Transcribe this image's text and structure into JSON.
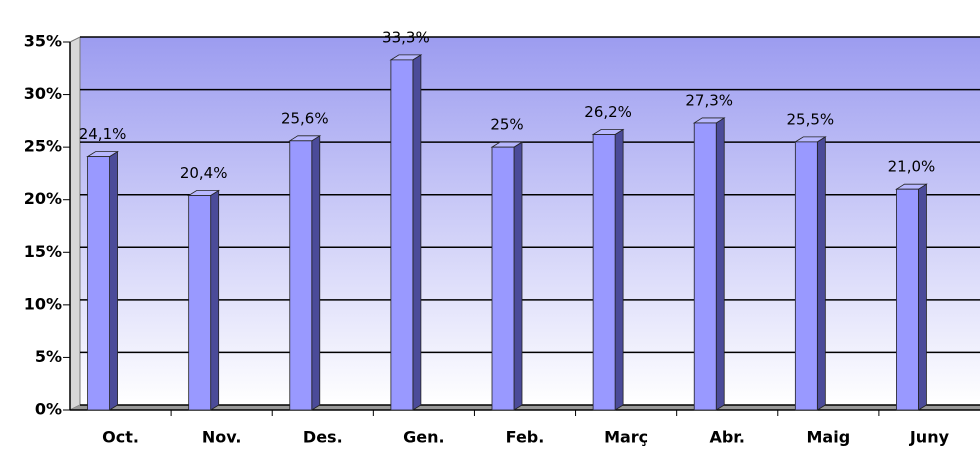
{
  "chart_data": {
    "type": "bar",
    "categories": [
      "Oct.",
      "Nov.",
      "Des.",
      "Gen.",
      "Feb.",
      "Març",
      "Abr.",
      "Maig",
      "Juny"
    ],
    "values": [
      24.1,
      20.4,
      25.6,
      33.3,
      25,
      26.2,
      27.3,
      25.5,
      21.0
    ],
    "value_labels": [
      "24,1%",
      "20,4%",
      "25,6%",
      "33,3%",
      "25%",
      "26,2%",
      "27,3%",
      "25,5%",
      "21,0%"
    ],
    "color": "#9999ff",
    "ylim": [
      0,
      35
    ],
    "yticks": [
      {
        "value": 0,
        "label": "0%"
      },
      {
        "value": 5,
        "label": "5%"
      },
      {
        "value": 10,
        "label": "10%"
      },
      {
        "value": 15,
        "label": "15%"
      },
      {
        "value": 20,
        "label": "20%"
      },
      {
        "value": 25,
        "label": "25%"
      },
      {
        "value": 30,
        "label": "30%"
      },
      {
        "value": 35,
        "label": "35%"
      }
    ],
    "grid": true
  }
}
